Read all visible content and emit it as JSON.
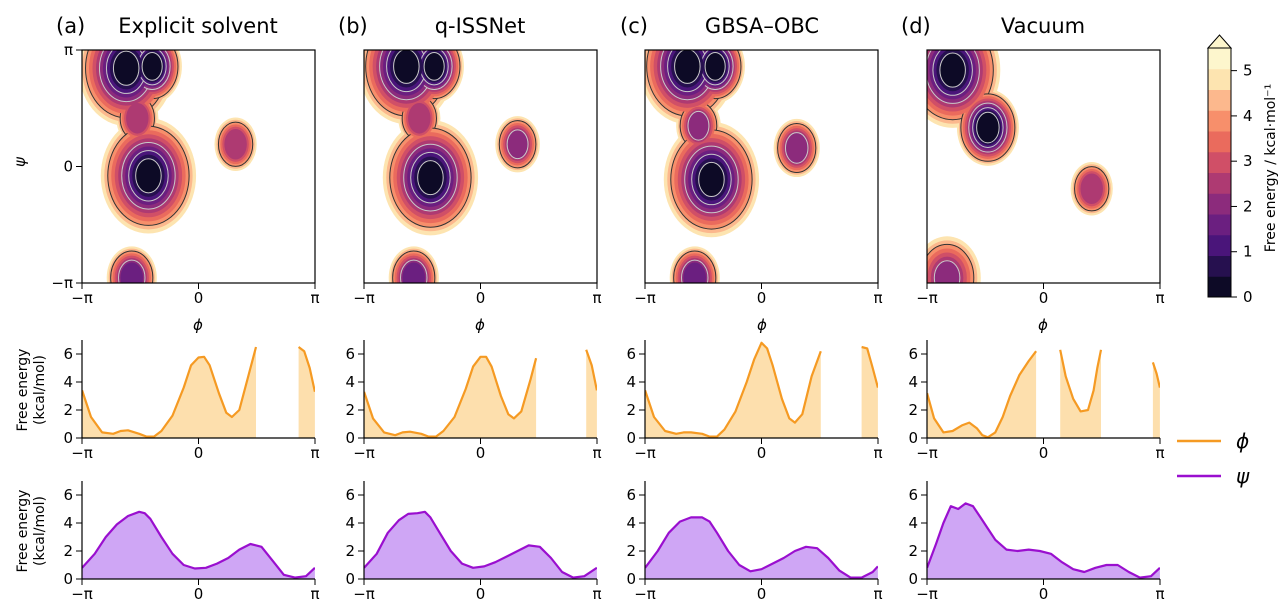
{
  "figure": {
    "panel_titles": [
      "(a)",
      "Explicit solvent",
      "(b)",
      "q-ISSNet",
      "(c)",
      "GBSA–OBC",
      "(d)",
      "Vacuum"
    ],
    "ramachandran_xlabel": "ϕ",
    "ramachandran_ylabel": "ψ",
    "angle_ticks": [
      "−π",
      "0",
      "π"
    ],
    "fe_ylabel_line1": "Free energy",
    "fe_ylabel_line2": "(kcal/mol)",
    "fe_yticks": [
      "0",
      "2",
      "4",
      "6"
    ],
    "colorbar_label": "Free energy / kcal·mol⁻¹",
    "colorbar_ticks": [
      "0",
      "1",
      "2",
      "3",
      "4",
      "5"
    ],
    "legend": [
      "ϕ",
      "ψ"
    ],
    "colors": {
      "phi_line": "#f59a23",
      "phi_fill": "#fddfad",
      "psi_line": "#9a0fcf",
      "psi_fill": "#cfa6f5",
      "colormap": [
        "#0d0a26",
        "#26104f",
        "#4a157a",
        "#6b1f80",
        "#8c2b7c",
        "#ae3a72",
        "#d04f67",
        "#ea6b5d",
        "#f78f6b",
        "#fcb88d",
        "#fde4b0",
        "#fdf6cd"
      ]
    }
  },
  "chart_data": [
    {
      "type": "heatmap",
      "panel": "(a)",
      "title": "Explicit solvent",
      "xlabel": "ϕ",
      "ylabel": "ψ",
      "xlim": [
        -3.1416,
        3.1416
      ],
      "ylim": [
        -3.1416,
        3.1416
      ],
      "zlim": [
        0,
        5.5
      ],
      "basins": [
        {
          "phi": -1.95,
          "psi": 2.65,
          "min_free_energy": 0.0
        },
        {
          "phi": -1.25,
          "psi": 2.7,
          "min_free_energy": 0.3
        },
        {
          "phi": -1.65,
          "psi": 1.3,
          "min_free_energy": 2.5
        },
        {
          "phi": -1.35,
          "psi": -0.25,
          "min_free_energy": 0.0
        },
        {
          "phi": 1.0,
          "psi": 0.6,
          "min_free_energy": 2.5
        },
        {
          "phi": -1.8,
          "psi": -3.0,
          "min_free_energy": 1.5
        }
      ]
    },
    {
      "type": "heatmap",
      "panel": "(b)",
      "title": "q-ISSNet",
      "xlabel": "ϕ",
      "ylabel": "ψ",
      "xlim": [
        -3.1416,
        3.1416
      ],
      "ylim": [
        -3.1416,
        3.1416
      ],
      "zlim": [
        0,
        5.5
      ],
      "basins": [
        {
          "phi": -2.0,
          "psi": 2.7,
          "min_free_energy": 0.0
        },
        {
          "phi": -1.25,
          "psi": 2.7,
          "min_free_energy": 0.3
        },
        {
          "phi": -1.65,
          "psi": 1.3,
          "min_free_energy": 2.5
        },
        {
          "phi": -1.35,
          "psi": -0.3,
          "min_free_energy": 0.0
        },
        {
          "phi": 1.0,
          "psi": 0.6,
          "min_free_energy": 2.2
        },
        {
          "phi": -1.8,
          "psi": -3.0,
          "min_free_energy": 1.5
        }
      ]
    },
    {
      "type": "heatmap",
      "panel": "(c)",
      "title": "GBSA–OBC",
      "xlabel": "ϕ",
      "ylabel": "ψ",
      "xlim": [
        -3.1416,
        3.1416
      ],
      "ylim": [
        -3.1416,
        3.1416
      ],
      "zlim": [
        0,
        5.5
      ],
      "basins": [
        {
          "phi": -2.0,
          "psi": 2.7,
          "min_free_energy": 0.0
        },
        {
          "phi": -1.25,
          "psi": 2.7,
          "min_free_energy": 0.3
        },
        {
          "phi": -1.7,
          "psi": 1.1,
          "min_free_energy": 2.2
        },
        {
          "phi": -1.35,
          "psi": -0.35,
          "min_free_energy": 0.0
        },
        {
          "phi": 0.95,
          "psi": 0.5,
          "min_free_energy": 2.0
        },
        {
          "phi": -1.8,
          "psi": -3.0,
          "min_free_energy": 1.5
        }
      ]
    },
    {
      "type": "heatmap",
      "panel": "(d)",
      "title": "Vacuum",
      "xlabel": "ϕ",
      "ylabel": "ψ",
      "xlim": [
        -3.1416,
        3.1416
      ],
      "ylim": [
        -3.1416,
        3.1416
      ],
      "zlim": [
        0,
        5.5
      ],
      "basins": [
        {
          "phi": -2.45,
          "psi": 2.6,
          "min_free_energy": 0.0
        },
        {
          "phi": -1.5,
          "psi": 1.05,
          "min_free_energy": 0.0
        },
        {
          "phi": 1.3,
          "psi": -0.6,
          "min_free_energy": 2.5
        },
        {
          "phi": -2.6,
          "psi": -3.0,
          "min_free_energy": 2.0
        }
      ]
    },
    {
      "type": "area",
      "panel": "(a)",
      "xlabel": "",
      "ylabel": "Free energy (kcal/mol)",
      "xlim": [
        -3.1416,
        3.1416
      ],
      "ylim": [
        0,
        7
      ],
      "series": [
        {
          "name": "ϕ",
          "x": [
            -3.14,
            -2.9,
            -2.6,
            -2.3,
            -2.1,
            -1.9,
            -1.6,
            -1.4,
            -1.2,
            -1.0,
            -0.7,
            -0.4,
            -0.2,
            0.0,
            0.15,
            0.3,
            0.55,
            0.75,
            0.9,
            1.1,
            1.35,
            1.55,
            1.6
          ],
          "values": [
            3.4,
            1.5,
            0.4,
            0.3,
            0.5,
            0.55,
            0.3,
            0.1,
            0.1,
            0.5,
            1.6,
            3.6,
            5.2,
            5.75,
            5.8,
            5.2,
            3.2,
            1.8,
            1.5,
            2.0,
            4.5,
            6.5,
            null
          ]
        },
        {
          "name": "ϕ (tail)",
          "x": [
            2.7,
            2.85,
            3.0,
            3.14
          ],
          "values": [
            6.5,
            6.2,
            5.0,
            3.3
          ]
        }
      ]
    },
    {
      "type": "area",
      "panel": "(b)",
      "xlabel": "",
      "ylabel": "",
      "xlim": [
        -3.1416,
        3.1416
      ],
      "ylim": [
        0,
        7
      ],
      "series": [
        {
          "name": "ϕ",
          "x": [
            -3.14,
            -2.9,
            -2.6,
            -2.3,
            -2.1,
            -1.9,
            -1.6,
            -1.4,
            -1.2,
            -1.0,
            -0.7,
            -0.4,
            -0.2,
            0.0,
            0.15,
            0.3,
            0.55,
            0.75,
            0.9,
            1.1,
            1.35,
            1.5
          ],
          "values": [
            3.3,
            1.4,
            0.4,
            0.2,
            0.4,
            0.45,
            0.3,
            0.1,
            0.1,
            0.5,
            1.5,
            3.5,
            5.1,
            5.8,
            5.8,
            5.1,
            3.0,
            1.7,
            1.4,
            1.9,
            4.2,
            5.7
          ]
        },
        {
          "name": "ϕ (tail)",
          "x": [
            2.85,
            3.0,
            3.14
          ],
          "values": [
            6.3,
            5.2,
            3.4
          ]
        }
      ]
    },
    {
      "type": "area",
      "panel": "(c)",
      "xlabel": "",
      "ylabel": "",
      "xlim": [
        -3.1416,
        3.1416
      ],
      "ylim": [
        0,
        7
      ],
      "series": [
        {
          "name": "ϕ",
          "x": [
            -3.14,
            -2.9,
            -2.6,
            -2.3,
            -2.1,
            -1.9,
            -1.6,
            -1.4,
            -1.2,
            -1.0,
            -0.7,
            -0.4,
            -0.2,
            0.0,
            0.15,
            0.3,
            0.55,
            0.75,
            0.9,
            1.1,
            1.35,
            1.6
          ],
          "values": [
            3.4,
            1.5,
            0.5,
            0.3,
            0.4,
            0.4,
            0.3,
            0.1,
            0.1,
            0.6,
            1.9,
            4.0,
            5.6,
            6.8,
            6.4,
            5.2,
            2.8,
            1.4,
            1.1,
            1.7,
            4.4,
            6.2
          ]
        },
        {
          "name": "ϕ (tail)",
          "x": [
            2.7,
            2.85,
            3.0,
            3.14
          ],
          "values": [
            6.5,
            6.4,
            5.0,
            3.6
          ]
        }
      ]
    },
    {
      "type": "area",
      "panel": "(d)",
      "xlabel": "",
      "ylabel": "",
      "xlim": [
        -3.1416,
        3.1416
      ],
      "ylim": [
        0,
        7
      ],
      "series": [
        {
          "name": "ϕ",
          "x": [
            -3.14,
            -2.95,
            -2.7,
            -2.45,
            -2.2,
            -2.0,
            -1.8,
            -1.65,
            -1.5,
            -1.3,
            -1.1,
            -0.9,
            -0.65,
            -0.4,
            -0.2
          ],
          "values": [
            3.2,
            1.4,
            0.4,
            0.5,
            0.9,
            1.1,
            0.7,
            0.2,
            0.05,
            0.4,
            1.5,
            3.0,
            4.5,
            5.5,
            6.2
          ]
        },
        {
          "name": "ϕ",
          "x": [
            0.45,
            0.6,
            0.8,
            1.0,
            1.2,
            1.35,
            1.45,
            1.55
          ],
          "values": [
            6.3,
            4.4,
            2.8,
            1.9,
            2.0,
            3.4,
            5.0,
            6.3
          ]
        },
        {
          "name": "ϕ (tail)",
          "x": [
            2.95,
            3.05,
            3.14
          ],
          "values": [
            5.4,
            4.6,
            3.6
          ]
        }
      ]
    },
    {
      "type": "area",
      "panel": "(a)",
      "xlabel": "",
      "ylabel": "Free energy (kcal/mol)",
      "xlim": [
        -3.1416,
        3.1416
      ],
      "ylim": [
        0,
        7
      ],
      "series": [
        {
          "name": "ψ",
          "x": [
            -3.14,
            -2.8,
            -2.5,
            -2.2,
            -1.9,
            -1.6,
            -1.45,
            -1.3,
            -1.0,
            -0.7,
            -0.4,
            -0.1,
            0.2,
            0.5,
            0.8,
            1.1,
            1.4,
            1.7,
            2.0,
            2.3,
            2.6,
            2.9,
            3.14
          ],
          "values": [
            0.8,
            1.8,
            3.0,
            3.9,
            4.5,
            4.8,
            4.7,
            4.3,
            3.0,
            1.8,
            1.0,
            0.75,
            0.8,
            1.1,
            1.5,
            2.1,
            2.5,
            2.3,
            1.3,
            0.3,
            0.1,
            0.2,
            0.8
          ]
        }
      ]
    },
    {
      "type": "area",
      "panel": "(b)",
      "xlabel": "",
      "ylabel": "",
      "xlim": [
        -3.1416,
        3.1416
      ],
      "ylim": [
        0,
        7
      ],
      "series": [
        {
          "name": "ψ",
          "x": [
            -3.14,
            -2.8,
            -2.5,
            -2.2,
            -1.95,
            -1.7,
            -1.5,
            -1.35,
            -1.1,
            -0.8,
            -0.5,
            -0.2,
            0.1,
            0.4,
            0.7,
            1.0,
            1.3,
            1.6,
            1.9,
            2.2,
            2.5,
            2.8,
            3.14
          ],
          "values": [
            0.8,
            1.8,
            3.3,
            4.2,
            4.65,
            4.7,
            4.8,
            4.4,
            3.3,
            2.0,
            1.1,
            0.8,
            0.9,
            1.2,
            1.6,
            2.0,
            2.4,
            2.3,
            1.5,
            0.5,
            0.1,
            0.2,
            0.8
          ]
        }
      ]
    },
    {
      "type": "area",
      "panel": "(c)",
      "xlabel": "",
      "ylabel": "",
      "xlim": [
        -3.1416,
        3.1416
      ],
      "ylim": [
        0,
        7
      ],
      "series": [
        {
          "name": "ψ",
          "x": [
            -3.14,
            -2.8,
            -2.5,
            -2.2,
            -1.9,
            -1.6,
            -1.4,
            -1.2,
            -0.9,
            -0.6,
            -0.3,
            0.0,
            0.3,
            0.6,
            0.9,
            1.2,
            1.5,
            1.8,
            2.1,
            2.4,
            2.7,
            3.0,
            3.14
          ],
          "values": [
            0.8,
            2.0,
            3.3,
            4.1,
            4.4,
            4.4,
            4.1,
            3.3,
            2.0,
            1.0,
            0.55,
            0.7,
            1.1,
            1.5,
            2.0,
            2.3,
            2.2,
            1.5,
            0.6,
            0.1,
            0.1,
            0.5,
            0.9
          ]
        }
      ]
    },
    {
      "type": "area",
      "panel": "(d)",
      "xlabel": "",
      "ylabel": "",
      "xlim": [
        -3.1416,
        3.1416
      ],
      "ylim": [
        0,
        7
      ],
      "series": [
        {
          "name": "ψ",
          "x": [
            -3.14,
            -2.9,
            -2.7,
            -2.5,
            -2.3,
            -2.1,
            -1.9,
            -1.7,
            -1.5,
            -1.3,
            -1.0,
            -0.7,
            -0.4,
            -0.1,
            0.2,
            0.5,
            0.8,
            1.1,
            1.4,
            1.7,
            2.0,
            2.3,
            2.6,
            2.9,
            3.14
          ],
          "values": [
            0.8,
            2.5,
            4.0,
            5.2,
            5.0,
            5.4,
            5.2,
            4.4,
            3.6,
            2.8,
            2.1,
            2.0,
            2.1,
            2.0,
            1.8,
            1.2,
            0.7,
            0.5,
            0.8,
            1.0,
            1.0,
            0.5,
            0.1,
            0.2,
            0.8
          ]
        }
      ]
    }
  ]
}
